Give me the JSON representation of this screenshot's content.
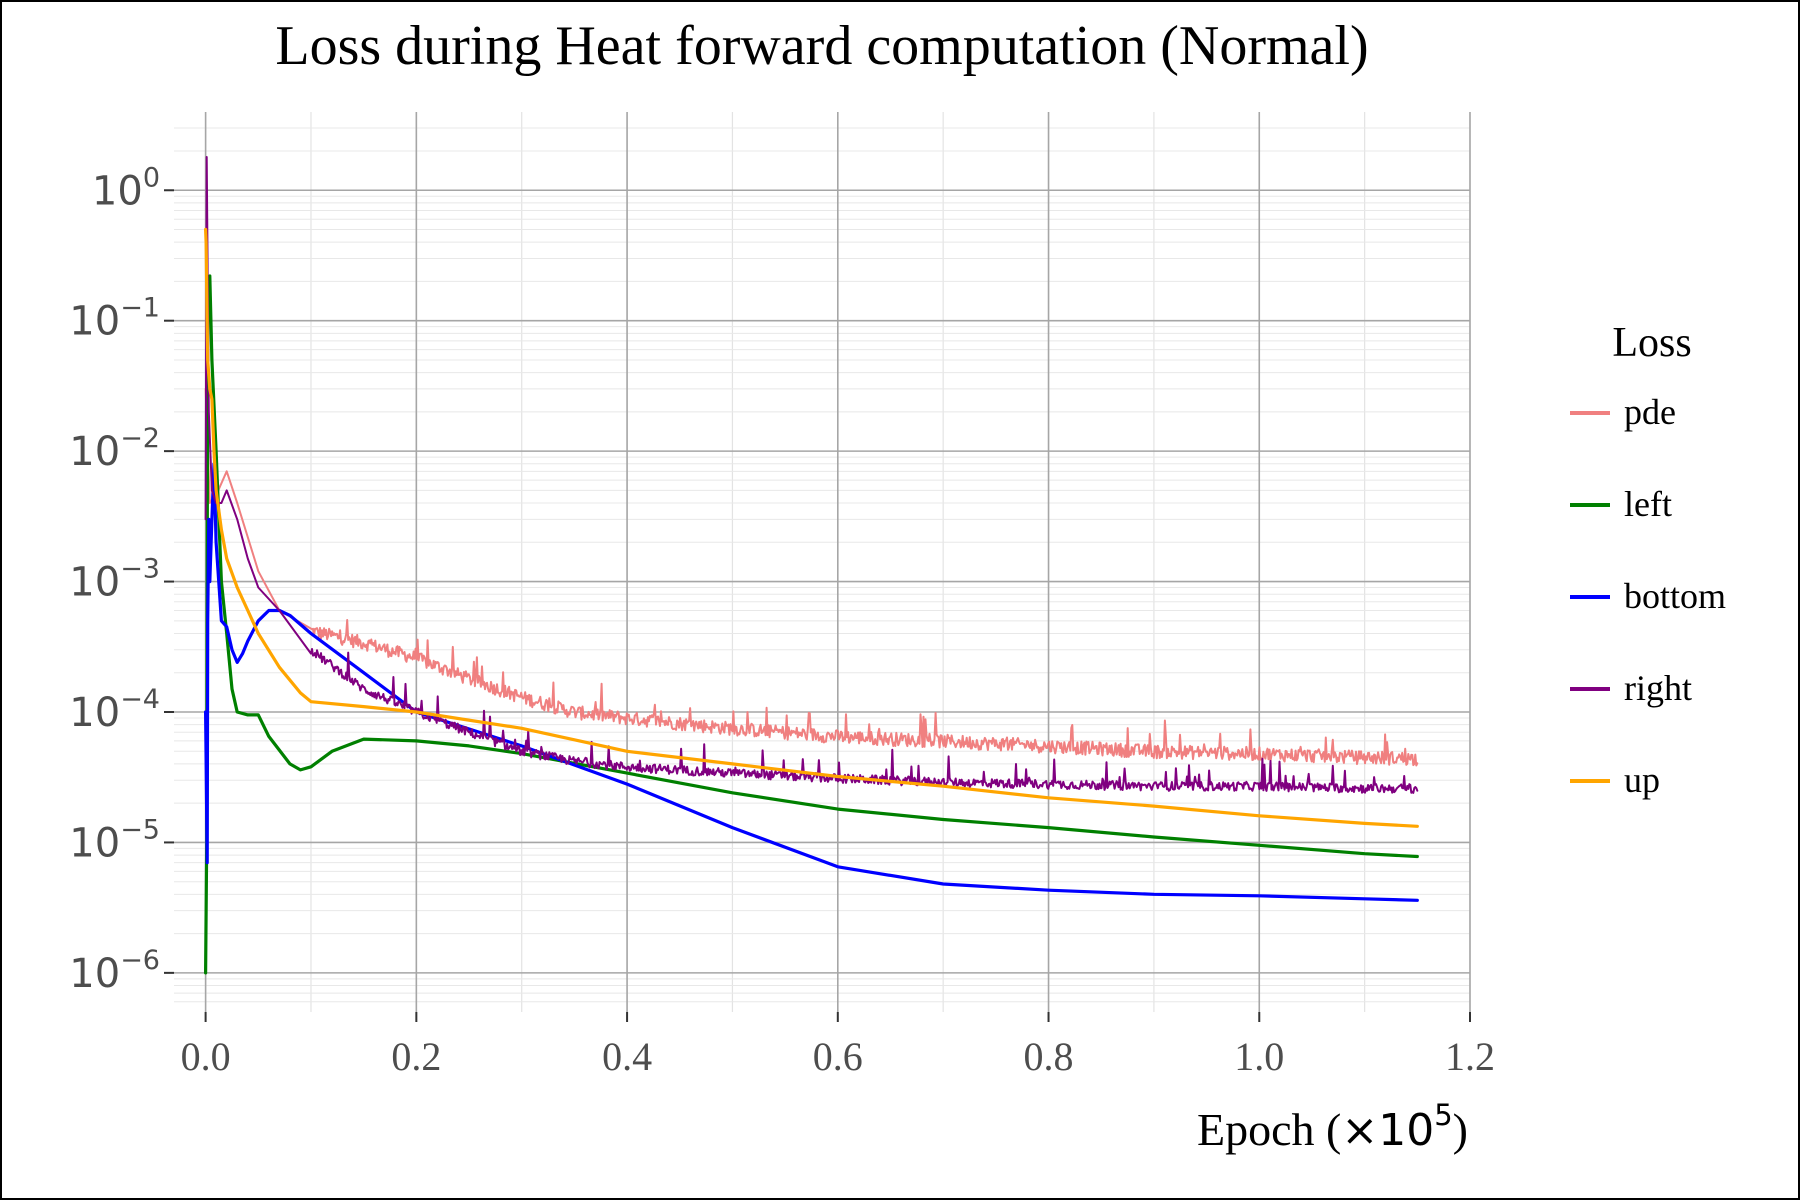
{
  "chart_data": {
    "type": "line",
    "title": "Loss during Heat forward computation (Normal)",
    "xlabel": "Epoch",
    "xlabel_multiplier": "×10",
    "xlabel_multiplier_exp": "5",
    "ylabel": "",
    "y_scale": "log",
    "xlim": [
      -0.03,
      1.2
    ],
    "ylim_log10": [
      -6.3,
      0.6
    ],
    "x_ticks": [
      0.0,
      0.2,
      0.4,
      0.6,
      0.8,
      1.0,
      1.2
    ],
    "x_tick_labels": [
      "0.0",
      "0.2",
      "0.4",
      "0.6",
      "0.8",
      "1.0",
      "1.2"
    ],
    "y_tick_base": "10",
    "y_tick_exponents": [
      "0",
      "−1",
      "−2",
      "−3",
      "−4",
      "−5",
      "−6"
    ],
    "grid": true,
    "legend": {
      "title": "Loss",
      "position": "right"
    },
    "series": [
      {
        "name": "pde",
        "color": "#f08080",
        "noise": 0.12,
        "x": [
          0,
          0.004,
          0.012,
          0.02,
          0.03,
          0.05,
          0.07,
          0.1,
          0.15,
          0.2,
          0.25,
          0.3,
          0.35,
          0.4,
          0.5,
          0.6,
          0.7,
          0.8,
          0.9,
          1.0,
          1.1,
          1.15
        ],
        "y": [
          0.03,
          0.004,
          0.005,
          0.007,
          0.004,
          0.0012,
          0.0006,
          0.00042,
          0.00034,
          0.00026,
          0.00018,
          0.00013,
          0.0001,
          9e-05,
          7.5e-05,
          6.5e-05,
          6e-05,
          5.5e-05,
          5e-05,
          4.8e-05,
          4.5e-05,
          4.4e-05
        ]
      },
      {
        "name": "left",
        "color": "#008000",
        "noise": 0,
        "x": [
          0,
          0.001,
          0.002,
          0.004,
          0.006,
          0.01,
          0.015,
          0.02,
          0.025,
          0.03,
          0.04,
          0.05,
          0.06,
          0.08,
          0.09,
          0.1,
          0.12,
          0.15,
          0.2,
          0.25,
          0.3,
          0.4,
          0.5,
          0.6,
          0.7,
          0.8,
          0.9,
          1.0,
          1.1,
          1.15
        ],
        "y": [
          1e-06,
          1e-05,
          0.1,
          0.22,
          0.05,
          0.01,
          0.001,
          0.0004,
          0.00015,
          0.0001,
          9.5e-05,
          9.5e-05,
          6.5e-05,
          4e-05,
          3.6e-05,
          3.8e-05,
          5e-05,
          6.2e-05,
          6e-05,
          5.5e-05,
          4.8e-05,
          3.4e-05,
          2.4e-05,
          1.8e-05,
          1.5e-05,
          1.3e-05,
          1.1e-05,
          9.5e-06,
          8.2e-06,
          7.8e-06
        ]
      },
      {
        "name": "bottom",
        "color": "#0000ff",
        "noise": 0,
        "x": [
          0,
          0.0015,
          0.002,
          0.003,
          0.004,
          0.006,
          0.008,
          0.01,
          0.015,
          0.02,
          0.025,
          0.03,
          0.035,
          0.04,
          0.05,
          0.06,
          0.07,
          0.08,
          0.1,
          0.15,
          0.2,
          0.3,
          0.4,
          0.5,
          0.6,
          0.7,
          0.8,
          0.9,
          1.0,
          1.1,
          1.15
        ],
        "y": [
          0.0001,
          7e-06,
          0.0005,
          0.003,
          0.001,
          0.003,
          0.008,
          0.002,
          0.0005,
          0.00045,
          0.0003,
          0.00024,
          0.00028,
          0.00035,
          0.0005,
          0.0006,
          0.0006,
          0.00055,
          0.0004,
          0.0002,
          0.0001,
          5.5e-05,
          2.8e-05,
          1.3e-05,
          6.5e-06,
          4.8e-06,
          4.3e-06,
          4e-06,
          3.9e-06,
          3.7e-06,
          3.6e-06
        ]
      },
      {
        "name": "right",
        "color": "#800080",
        "noise": 0.08,
        "x": [
          0,
          0.001,
          0.003,
          0.006,
          0.01,
          0.015,
          0.02,
          0.03,
          0.04,
          0.05,
          0.07,
          0.1,
          0.15,
          0.2,
          0.25,
          0.3,
          0.35,
          0.4,
          0.5,
          0.6,
          0.7,
          0.8,
          0.9,
          1.0,
          1.1,
          1.15
        ],
        "y": [
          0.003,
          1.8,
          0.02,
          0.005,
          0.004,
          0.004,
          0.005,
          0.003,
          0.0015,
          0.0009,
          0.0006,
          0.0003,
          0.00015,
          0.0001,
          7e-05,
          5e-05,
          4.2e-05,
          3.8e-05,
          3.4e-05,
          3.1e-05,
          2.9e-05,
          2.8e-05,
          2.7e-05,
          2.7e-05,
          2.6e-05,
          2.6e-05
        ]
      },
      {
        "name": "up",
        "color": "#ffa500",
        "noise": 0,
        "x": [
          0,
          0.0005,
          0.002,
          0.004,
          0.006,
          0.008,
          0.01,
          0.015,
          0.02,
          0.03,
          0.04,
          0.05,
          0.07,
          0.09,
          0.1,
          0.15,
          0.2,
          0.3,
          0.4,
          0.5,
          0.6,
          0.7,
          0.8,
          0.9,
          1.0,
          1.1,
          1.15
        ],
        "y": [
          0.5,
          0.4,
          0.05,
          0.03,
          0.025,
          0.01,
          0.005,
          0.0025,
          0.0015,
          0.0009,
          0.0006,
          0.0004,
          0.00022,
          0.00014,
          0.00012,
          0.00011,
          0.0001,
          7.5e-05,
          5e-05,
          4e-05,
          3.2e-05,
          2.7e-05,
          2.2e-05,
          1.9e-05,
          1.6e-05,
          1.4e-05,
          1.33e-05
        ]
      }
    ]
  }
}
